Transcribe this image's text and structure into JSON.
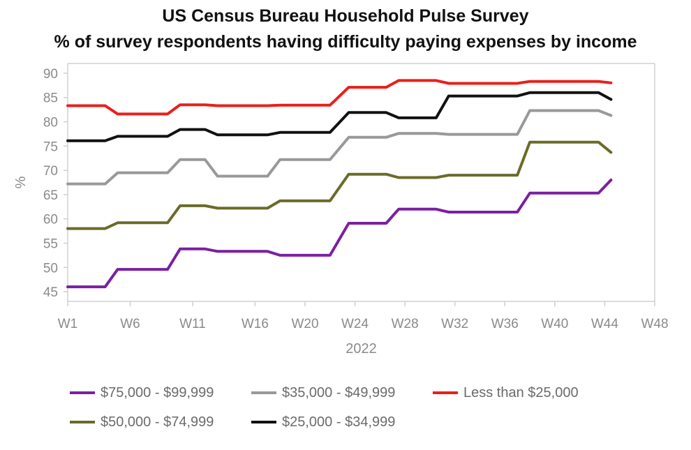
{
  "chart_data": {
    "type": "line",
    "title": "US Census Bureau Household Pulse Survey",
    "subtitle": "% of survey respondents having difficulty paying expenses by income",
    "xlabel": "2022",
    "ylabel": "%",
    "ylim": [
      43,
      92
    ],
    "xlim": [
      1,
      48
    ],
    "yticks": [
      45,
      50,
      55,
      60,
      65,
      70,
      75,
      80,
      85,
      90
    ],
    "xticks": [
      {
        "pos": 1,
        "label": "W1"
      },
      {
        "pos": 6,
        "label": "W6"
      },
      {
        "pos": 11,
        "label": "W11"
      },
      {
        "pos": 16,
        "label": "W16"
      },
      {
        "pos": 20,
        "label": "W20"
      },
      {
        "pos": 24,
        "label": "W24"
      },
      {
        "pos": 28,
        "label": "W28"
      },
      {
        "pos": 32,
        "label": "W32"
      },
      {
        "pos": 36,
        "label": "W36"
      },
      {
        "pos": 40,
        "label": "W40"
      },
      {
        "pos": 44,
        "label": "W44"
      },
      {
        "pos": 48,
        "label": "W48"
      }
    ],
    "grid": false,
    "legend_position": "bottom",
    "series": [
      {
        "name": "$75,000 - $99,999",
        "color": "#7b1fa2",
        "points": [
          [
            1,
            46
          ],
          [
            3,
            46
          ],
          [
            4,
            46
          ],
          [
            5,
            49.6
          ],
          [
            7,
            49.6
          ],
          [
            9,
            49.6
          ],
          [
            10,
            53.8
          ],
          [
            12,
            53.8
          ],
          [
            13,
            53.3
          ],
          [
            15,
            53.3
          ],
          [
            17,
            53.3
          ],
          [
            18,
            52.5
          ],
          [
            20,
            52.5
          ],
          [
            22,
            52.5
          ],
          [
            23.5,
            59.1
          ],
          [
            25,
            59.1
          ],
          [
            26.5,
            59.1
          ],
          [
            27.5,
            62
          ],
          [
            29,
            62
          ],
          [
            30.5,
            62
          ],
          [
            31.5,
            61.4
          ],
          [
            35,
            61.4
          ],
          [
            37,
            61.4
          ],
          [
            38,
            65.3
          ],
          [
            40,
            65.3
          ],
          [
            43.5,
            65.3
          ],
          [
            44.5,
            68
          ]
        ]
      },
      {
        "name": "$50,000 - $74,999",
        "color": "#6b6b2a",
        "points": [
          [
            1,
            58
          ],
          [
            3,
            58
          ],
          [
            4,
            58
          ],
          [
            5,
            59.2
          ],
          [
            7,
            59.2
          ],
          [
            9,
            59.2
          ],
          [
            10,
            62.7
          ],
          [
            12,
            62.7
          ],
          [
            13,
            62.2
          ],
          [
            15,
            62.2
          ],
          [
            17,
            62.2
          ],
          [
            18,
            63.7
          ],
          [
            20,
            63.7
          ],
          [
            22,
            63.7
          ],
          [
            23.5,
            69.2
          ],
          [
            25,
            69.2
          ],
          [
            26.5,
            69.2
          ],
          [
            27.5,
            68.5
          ],
          [
            29,
            68.5
          ],
          [
            30.5,
            68.5
          ],
          [
            31.5,
            69
          ],
          [
            35,
            69
          ],
          [
            37,
            69
          ],
          [
            38,
            75.8
          ],
          [
            40,
            75.8
          ],
          [
            43.5,
            75.8
          ],
          [
            44.5,
            73.7
          ]
        ]
      },
      {
        "name": "$35,000 - $49,999",
        "color": "#999999",
        "points": [
          [
            1,
            67.2
          ],
          [
            3,
            67.2
          ],
          [
            4,
            67.2
          ],
          [
            5,
            69.5
          ],
          [
            7,
            69.5
          ],
          [
            9,
            69.5
          ],
          [
            10,
            72.2
          ],
          [
            12,
            72.2
          ],
          [
            13,
            68.8
          ],
          [
            15,
            68.8
          ],
          [
            17,
            68.8
          ],
          [
            18,
            72.2
          ],
          [
            20,
            72.2
          ],
          [
            22,
            72.2
          ],
          [
            23.5,
            76.8
          ],
          [
            25,
            76.8
          ],
          [
            26.5,
            76.8
          ],
          [
            27.5,
            77.6
          ],
          [
            29,
            77.6
          ],
          [
            30.5,
            77.6
          ],
          [
            31.5,
            77.4
          ],
          [
            35,
            77.4
          ],
          [
            37,
            77.4
          ],
          [
            38,
            82.3
          ],
          [
            40,
            82.3
          ],
          [
            43.5,
            82.3
          ],
          [
            44.5,
            81.3
          ]
        ]
      },
      {
        "name": "$25,000 - $34,999",
        "color": "#111111",
        "points": [
          [
            1,
            76.1
          ],
          [
            3,
            76.1
          ],
          [
            4,
            76.1
          ],
          [
            5,
            77
          ],
          [
            7,
            77
          ],
          [
            9,
            77
          ],
          [
            10,
            78.4
          ],
          [
            12,
            78.4
          ],
          [
            13,
            77.3
          ],
          [
            15,
            77.3
          ],
          [
            17,
            77.3
          ],
          [
            18,
            77.8
          ],
          [
            20,
            77.8
          ],
          [
            22,
            77.8
          ],
          [
            23.5,
            81.9
          ],
          [
            25,
            81.9
          ],
          [
            26.5,
            81.9
          ],
          [
            27.5,
            80.8
          ],
          [
            29,
            80.8
          ],
          [
            30.5,
            80.8
          ],
          [
            31.5,
            85.3
          ],
          [
            35,
            85.3
          ],
          [
            37,
            85.3
          ],
          [
            38,
            86
          ],
          [
            40,
            86
          ],
          [
            43.5,
            86
          ],
          [
            44.5,
            84.6
          ]
        ]
      },
      {
        "name": "Less than $25,000",
        "color": "#e8201b",
        "points": [
          [
            1,
            83.3
          ],
          [
            3,
            83.3
          ],
          [
            4,
            83.3
          ],
          [
            5,
            81.6
          ],
          [
            7,
            81.6
          ],
          [
            9,
            81.6
          ],
          [
            10,
            83.5
          ],
          [
            12,
            83.5
          ],
          [
            13,
            83.3
          ],
          [
            15,
            83.3
          ],
          [
            17,
            83.3
          ],
          [
            18,
            83.4
          ],
          [
            20,
            83.4
          ],
          [
            22,
            83.4
          ],
          [
            23.5,
            87.1
          ],
          [
            25,
            87.1
          ],
          [
            26.5,
            87.1
          ],
          [
            27.5,
            88.5
          ],
          [
            29,
            88.5
          ],
          [
            30.5,
            88.5
          ],
          [
            31.5,
            87.9
          ],
          [
            35,
            87.9
          ],
          [
            37,
            87.9
          ],
          [
            38,
            88.3
          ],
          [
            40,
            88.3
          ],
          [
            43.5,
            88.3
          ],
          [
            44.5,
            88
          ]
        ]
      }
    ]
  },
  "legend": {
    "rows": [
      [
        "$75,000 - $99,999",
        "$35,000 - $49,999",
        "Less than $25,000"
      ],
      [
        "$50,000 - $74,999",
        "$25,000 - $34,999"
      ]
    ]
  }
}
